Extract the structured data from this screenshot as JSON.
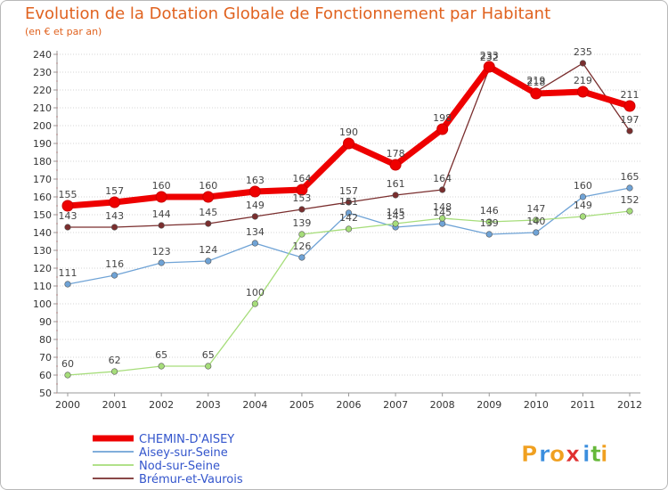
{
  "header": {
    "title": "Evolution de la Dotation Globale de Fonctionnement par Habitant",
    "subtitle": "(en € et par an)"
  },
  "chart_data": {
    "type": "line",
    "title": "Evolution de la Dotation Globale de Fonctionnement par Habitant",
    "subtitle": "(en € et par an)",
    "xlabel": "",
    "ylabel": "",
    "x": [
      "2000",
      "2001",
      "2002",
      "2003",
      "2004",
      "2005",
      "2006",
      "2007",
      "2008",
      "2009",
      "2010",
      "2011",
      "2012"
    ],
    "ylim": [
      50,
      240
    ],
    "yticks": [
      50,
      60,
      70,
      80,
      90,
      100,
      110,
      120,
      130,
      140,
      150,
      160,
      170,
      180,
      190,
      200,
      210,
      220,
      230,
      240
    ],
    "grid": "horizontal dotted",
    "legend_position": "bottom-left",
    "series": [
      {
        "name": "CHEMIN-D'AISEY",
        "color": "#ee0000",
        "emphasis": "thick",
        "values": [
          155,
          157,
          160,
          160,
          163,
          164,
          190,
          178,
          198,
          233,
          218,
          219,
          211
        ]
      },
      {
        "name": "Aisey-sur-Seine",
        "color": "#6fa3d6",
        "emphasis": "normal",
        "values": [
          111,
          116,
          123,
          124,
          134,
          126,
          151,
          143,
          145,
          139,
          140,
          160,
          165
        ]
      },
      {
        "name": "Nod-sur-Seine",
        "color": "#a6dd7a",
        "emphasis": "normal",
        "values": [
          60,
          62,
          65,
          65,
          100,
          139,
          142,
          145,
          148,
          146,
          147,
          149,
          152
        ]
      },
      {
        "name": "Brémur-et-Vaurois",
        "color": "#7a2e2e",
        "emphasis": "normal",
        "values": [
          143,
          143,
          144,
          145,
          149,
          153,
          157,
          161,
          164,
          232,
          219,
          235,
          197
        ]
      }
    ]
  },
  "brand": {
    "logo_letters": [
      "P",
      "r",
      "o",
      "x",
      "i",
      "t",
      "i"
    ],
    "logo_colors": [
      "#f0a020",
      "#3b8ede",
      "#f0a020",
      "#e03030",
      "#3b8ede",
      "#66b83a",
      "#f0a020"
    ]
  }
}
